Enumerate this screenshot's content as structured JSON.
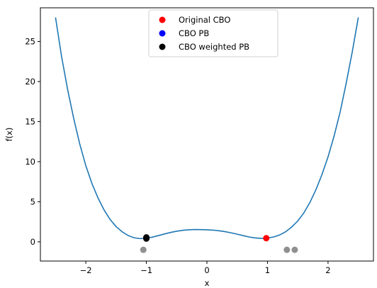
{
  "chart_data": {
    "type": "scatter",
    "xlabel": "x",
    "ylabel": "f(x)",
    "xlim": [
      -2.75,
      2.75
    ],
    "ylim": [
      -2.4,
      29.2
    ],
    "x_ticks": [
      -2,
      -1,
      0,
      1,
      2
    ],
    "y_ticks": [
      0,
      5,
      10,
      15,
      20,
      25
    ],
    "x_tick_labels": [
      "−2",
      "−1",
      "0",
      "1",
      "2"
    ],
    "y_tick_labels": [
      "0",
      "5",
      "10",
      "15",
      "20",
      "25"
    ],
    "legend_position": "top-center",
    "curve": {
      "color": "#1f77b4",
      "x": [
        -2.5,
        -2.4,
        -2.3,
        -2.2,
        -2.1,
        -2.0,
        -1.9,
        -1.8,
        -1.7,
        -1.6,
        -1.5,
        -1.4,
        -1.3,
        -1.2,
        -1.1,
        -1.0,
        -0.9,
        -0.8,
        -0.7,
        -0.6,
        -0.5,
        -0.4,
        -0.3,
        -0.2,
        -0.1,
        0.0,
        0.1,
        0.2,
        0.3,
        0.4,
        0.5,
        0.6,
        0.7,
        0.8,
        0.9,
        1.0,
        1.1,
        1.2,
        1.3,
        1.4,
        1.5,
        1.6,
        1.7,
        1.8,
        1.9,
        2.0,
        2.1,
        2.2,
        2.3,
        2.4,
        2.5
      ],
      "y": [
        28.0,
        23.1,
        19.0,
        15.4,
        12.2,
        9.5,
        7.3,
        5.5,
        4.0,
        2.8,
        1.9,
        1.25,
        0.78,
        0.5,
        0.4,
        0.45,
        0.58,
        0.78,
        0.98,
        1.17,
        1.32,
        1.43,
        1.5,
        1.53,
        1.52,
        1.5,
        1.46,
        1.38,
        1.27,
        1.12,
        0.95,
        0.77,
        0.6,
        0.48,
        0.43,
        0.47,
        0.6,
        0.85,
        1.25,
        1.85,
        2.6,
        3.6,
        4.9,
        6.5,
        8.4,
        10.6,
        13.2,
        16.2,
        19.8,
        23.7,
        28.0
      ]
    },
    "series": [
      {
        "name": "Original CBO",
        "color": "#ff0000",
        "points": [
          {
            "x": 0.98,
            "y": 0.45
          }
        ]
      },
      {
        "name": "CBO PB",
        "color": "#0000ff",
        "points": [
          {
            "x": -1.0,
            "y": 0.5
          }
        ]
      },
      {
        "name": "CBO weighted PB",
        "color": "#000000",
        "points": [
          {
            "x": -1.0,
            "y": 0.55
          },
          {
            "x": -1.0,
            "y": 0.4
          }
        ]
      }
    ],
    "gray_points": {
      "color": "#909090",
      "points": [
        {
          "x": -1.05,
          "y": -1.0
        },
        {
          "x": 1.32,
          "y": -1.0
        },
        {
          "x": 1.45,
          "y": -1.0
        }
      ]
    }
  }
}
